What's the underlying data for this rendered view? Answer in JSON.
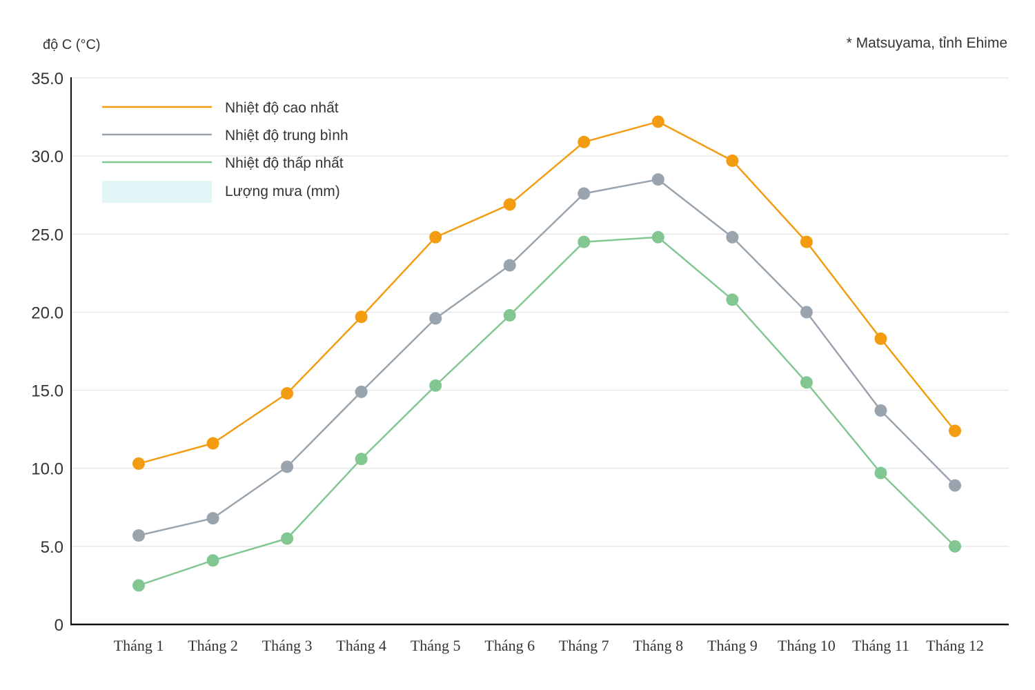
{
  "chart_data": {
    "type": "line",
    "title": "",
    "ylabel": "độ C (°C)",
    "note": "*  Matsuyama, tỉnh Ehime",
    "ylim": [
      0,
      35
    ],
    "yticks": [
      0,
      5,
      10,
      15,
      20,
      25,
      30,
      35
    ],
    "ytick_labels": [
      "0",
      "5.0",
      "10.0",
      "15.0",
      "20.0",
      "25.0",
      "30.0",
      "35.0"
    ],
    "grid": true,
    "legend_position": "top-left",
    "categories": [
      "Tháng 1",
      "Tháng 2",
      "Tháng 3",
      "Tháng 4",
      "Tháng 5",
      "Tháng 6",
      "Tháng 7",
      "Tháng 8",
      "Tháng 9",
      "Tháng 10",
      "Tháng 11",
      "Tháng 12"
    ],
    "series": [
      {
        "name": "Nhiệt độ cao nhất",
        "color": "#f39c12",
        "values": [
          10.3,
          11.6,
          14.8,
          19.7,
          24.8,
          26.9,
          30.9,
          32.2,
          29.7,
          24.5,
          18.3,
          12.4
        ]
      },
      {
        "name": "Nhiệt độ trung bình",
        "color": "#9aa4ae",
        "values": [
          5.7,
          6.8,
          10.1,
          14.9,
          19.6,
          23.0,
          27.6,
          28.5,
          24.8,
          20.0,
          13.7,
          8.9
        ]
      },
      {
        "name": "Nhiệt độ thấp nhất",
        "color": "#82c791",
        "values": [
          2.5,
          4.1,
          5.5,
          10.6,
          15.3,
          19.8,
          24.5,
          24.8,
          20.8,
          15.5,
          9.7,
          5.0
        ]
      }
    ],
    "legend_extra": {
      "name": "Lượng mưa (mm)",
      "color": "#e3f4f6"
    }
  }
}
